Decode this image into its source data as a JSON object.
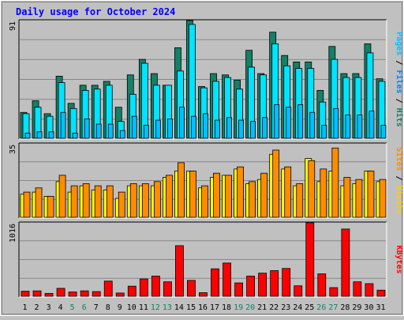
{
  "title": "Daily usage for October 2024",
  "colors": {
    "hits": "#138067",
    "files": "#00e4ff",
    "pages": "#00c0ff",
    "visits": "#ffff00",
    "sites": "#ff8c00",
    "kbytes": "#ff0000",
    "weekend_label": "#138067",
    "weekday_label": "#000000",
    "title": "#0000ff",
    "grid": "#888888",
    "panel_bg": "#c0c0c0"
  },
  "chart_data": [
    {
      "type": "bar",
      "panel": "hits_files_pages",
      "ylim": [
        0,
        91
      ],
      "ytick_label": "91",
      "side_label": [
        {
          "text": "Pages",
          "color": "#00c0ff"
        },
        {
          "text": " / ",
          "color": "#000000"
        },
        {
          "text": "Files",
          "color": "#0080ff"
        },
        {
          "text": " / ",
          "color": "#000000"
        },
        {
          "text": "Hits",
          "color": "#138067"
        }
      ],
      "categories": [
        "1",
        "2",
        "3",
        "4",
        "5",
        "6",
        "7",
        "8",
        "9",
        "10",
        "11",
        "12",
        "13",
        "14",
        "15",
        "16",
        "17",
        "18",
        "19",
        "20",
        "21",
        "22",
        "23",
        "24",
        "25",
        "26",
        "27",
        "28",
        "29",
        "30",
        "31"
      ],
      "series": [
        {
          "key": "hits",
          "values": [
            20,
            29,
            19,
            48,
            27,
            41,
            41,
            44,
            24,
            49,
            61,
            50,
            41,
            70,
            91,
            40,
            50,
            49,
            45,
            68,
            50,
            82,
            64,
            59,
            59,
            37,
            71,
            50,
            50,
            73,
            46
          ]
        },
        {
          "key": "files",
          "values": [
            19,
            24,
            17,
            43,
            23,
            37,
            38,
            41,
            13,
            34,
            58,
            41,
            41,
            52,
            88,
            39,
            44,
            47,
            38,
            55,
            49,
            73,
            56,
            54,
            54,
            28,
            61,
            47,
            47,
            66,
            44
          ]
        },
        {
          "key": "pages",
          "values": [
            4,
            5,
            5,
            20,
            4,
            15,
            11,
            11,
            6,
            17,
            10,
            14,
            15,
            24,
            17,
            19,
            14,
            16,
            14,
            13,
            16,
            26,
            24,
            26,
            20,
            10,
            23,
            18,
            18,
            21,
            10
          ]
        }
      ]
    },
    {
      "type": "bar",
      "panel": "visits_sites",
      "ylim": [
        0,
        35
      ],
      "ytick_label": "35",
      "side_label": [
        {
          "text": "Sites",
          "color": "#ff8c00"
        },
        {
          "text": " / ",
          "color": "#000000"
        },
        {
          "text": "Visits",
          "color": "#ffcc00"
        }
      ],
      "categories": [
        "1",
        "2",
        "3",
        "4",
        "5",
        "6",
        "7",
        "8",
        "9",
        "10",
        "11",
        "12",
        "13",
        "14",
        "15",
        "16",
        "17",
        "18",
        "19",
        "20",
        "21",
        "22",
        "23",
        "24",
        "25",
        "26",
        "27",
        "28",
        "29",
        "30",
        "31"
      ],
      "series": [
        {
          "key": "visits",
          "values": [
            11,
            12,
            10,
            17,
            12,
            15,
            13,
            13,
            9,
            15,
            15,
            15,
            19,
            22,
            22,
            14,
            19,
            20,
            23,
            16,
            18,
            30,
            23,
            15,
            28,
            17,
            22,
            15,
            16,
            22,
            17
          ]
        },
        {
          "key": "sites",
          "values": [
            12,
            14,
            10,
            20,
            15,
            16,
            15,
            15,
            12,
            16,
            16,
            17,
            20,
            26,
            22,
            15,
            21,
            20,
            24,
            17,
            21,
            32,
            24,
            16,
            27,
            23,
            33,
            19,
            18,
            22,
            18
          ]
        }
      ]
    },
    {
      "type": "bar",
      "panel": "kbytes",
      "ylim": [
        0,
        1016
      ],
      "ytick_label": "1016",
      "side_label": [
        {
          "text": "KBytes",
          "color": "#ff0000"
        }
      ],
      "categories": [
        "1",
        "2",
        "3",
        "4",
        "5",
        "6",
        "7",
        "8",
        "9",
        "10",
        "11",
        "12",
        "13",
        "14",
        "15",
        "16",
        "17",
        "18",
        "19",
        "20",
        "21",
        "22",
        "23",
        "24",
        "25",
        "26",
        "27",
        "28",
        "29",
        "30",
        "31"
      ],
      "weekend_days": [
        "5",
        "6",
        "12",
        "13",
        "19",
        "20",
        "26",
        "27"
      ],
      "series": [
        {
          "key": "kbytes",
          "values": [
            70,
            75,
            40,
            110,
            60,
            75,
            65,
            210,
            45,
            140,
            240,
            280,
            200,
            700,
            220,
            50,
            380,
            460,
            185,
            280,
            320,
            355,
            385,
            145,
            1016,
            310,
            120,
            930,
            200,
            175,
            85
          ]
        }
      ]
    }
  ]
}
